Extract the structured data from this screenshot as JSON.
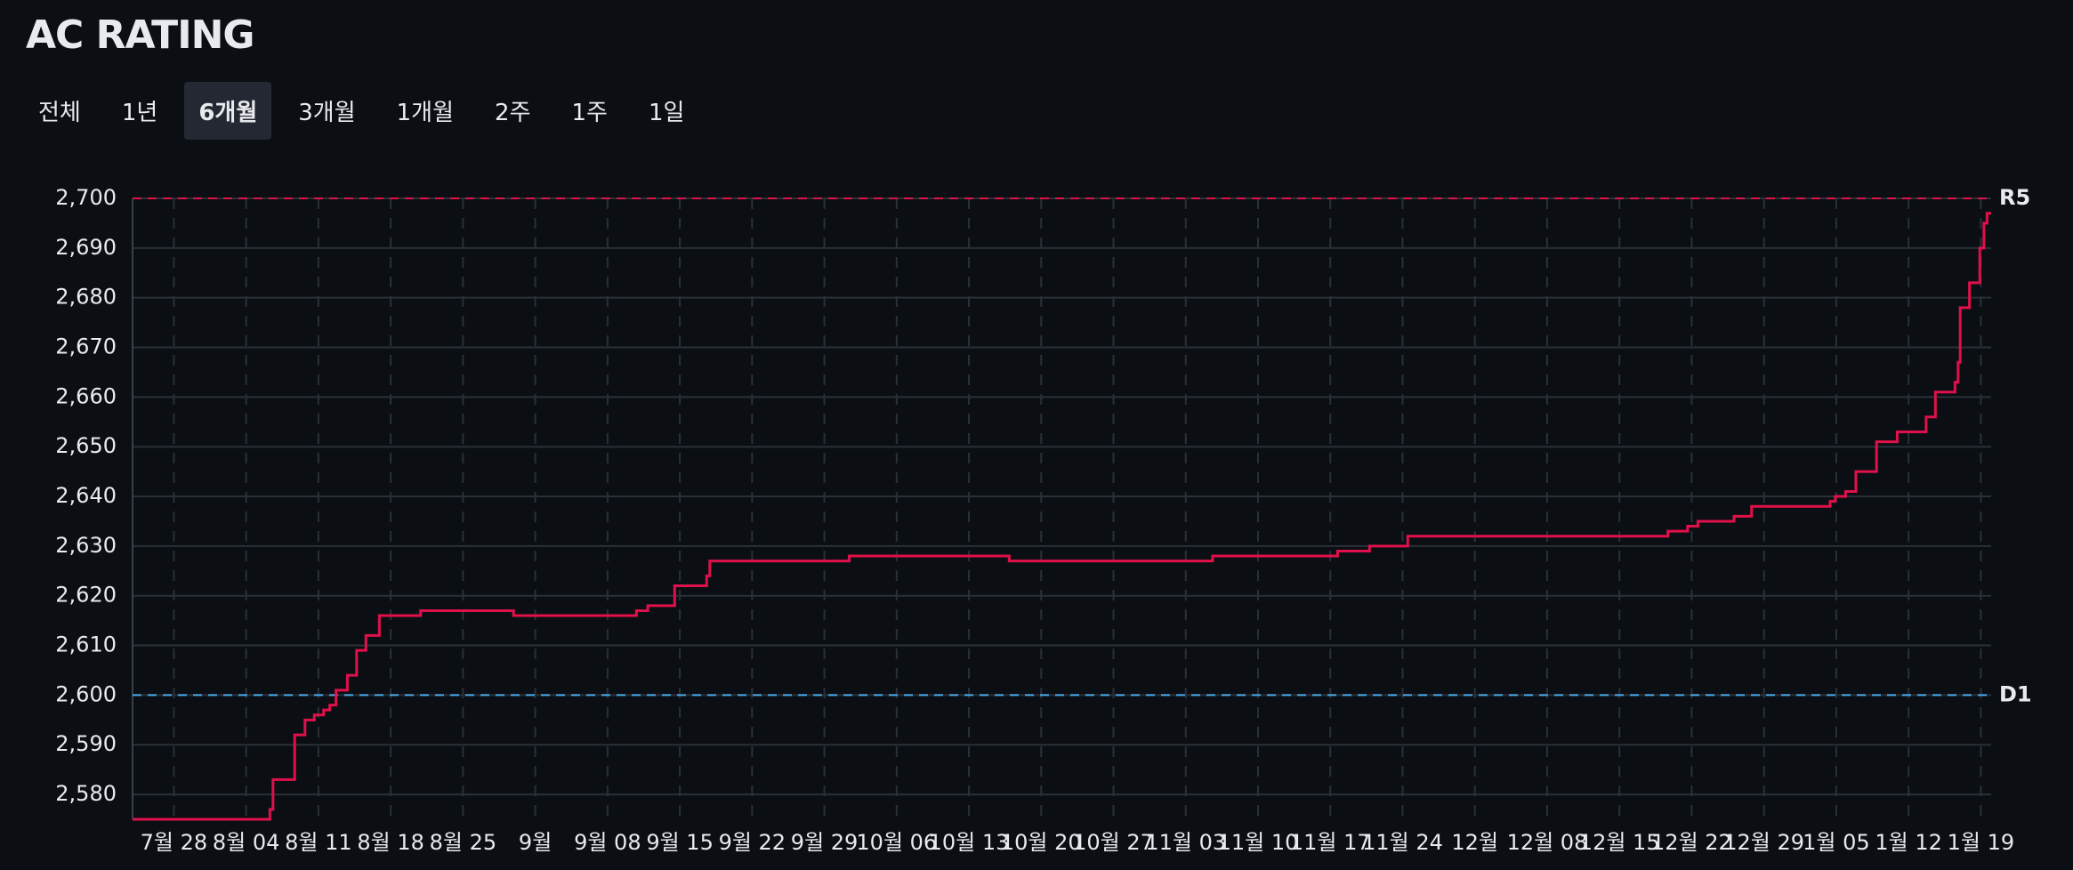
{
  "header": {
    "title": "AC RATING",
    "ranges": [
      "전체",
      "1년",
      "6개월",
      "3개월",
      "1개월",
      "2주",
      "1주",
      "1일"
    ],
    "selected_range": "6개월"
  },
  "chart_data": {
    "type": "step-line",
    "xlim": [
      205,
      385
    ],
    "xticks": [
      {
        "value": 209,
        "label": "7월 28"
      },
      {
        "value": 216,
        "label": "8월 04"
      },
      {
        "value": 223,
        "label": "8월 11"
      },
      {
        "value": 230,
        "label": "8월 18"
      },
      {
        "value": 237,
        "label": "8월 25"
      },
      {
        "value": 244,
        "label": "9월"
      },
      {
        "value": 251,
        "label": "9월 08"
      },
      {
        "value": 258,
        "label": "9월 15"
      },
      {
        "value": 265,
        "label": "9월 22"
      },
      {
        "value": 272,
        "label": "9월 29"
      },
      {
        "value": 279,
        "label": "10월 06"
      },
      {
        "value": 286,
        "label": "10월 13"
      },
      {
        "value": 293,
        "label": "10월 20"
      },
      {
        "value": 300,
        "label": "10월 27"
      },
      {
        "value": 307,
        "label": "11월 03"
      },
      {
        "value": 314,
        "label": "11월 10"
      },
      {
        "value": 321,
        "label": "11월 17"
      },
      {
        "value": 328,
        "label": "11월 24"
      },
      {
        "value": 335,
        "label": "12월"
      },
      {
        "value": 342,
        "label": "12월 08"
      },
      {
        "value": 349,
        "label": "12월 15"
      },
      {
        "value": 356,
        "label": "12월 22"
      },
      {
        "value": 363,
        "label": "12월 29"
      },
      {
        "value": 370,
        "label": "1월 05"
      },
      {
        "value": 377,
        "label": "1월 12"
      },
      {
        "value": 384,
        "label": "1월 19"
      }
    ],
    "ylim": [
      2575,
      2700
    ],
    "yticks": [
      {
        "value": 2580,
        "label": "2,580"
      },
      {
        "value": 2590,
        "label": "2,590"
      },
      {
        "value": 2600,
        "label": "2,600"
      },
      {
        "value": 2610,
        "label": "2,610"
      },
      {
        "value": 2620,
        "label": "2,620"
      },
      {
        "value": 2630,
        "label": "2,630"
      },
      {
        "value": 2640,
        "label": "2,640"
      },
      {
        "value": 2650,
        "label": "2,650"
      },
      {
        "value": 2660,
        "label": "2,660"
      },
      {
        "value": 2670,
        "label": "2,670"
      },
      {
        "value": 2680,
        "label": "2,680"
      },
      {
        "value": 2690,
        "label": "2,690"
      },
      {
        "value": 2700,
        "label": "2,700"
      }
    ],
    "grid": true,
    "series": [
      {
        "name": "AC Rating",
        "color": "#e0104a",
        "x": [
          205,
          218.3,
          218.6,
          220.7,
          221.7,
          222.6,
          223.5,
          224.1,
          224.7,
          225.8,
          226.7,
          227.6,
          228.9,
          232.9,
          241.9,
          253.8,
          254.9,
          257.5,
          260.6,
          260.9,
          274.4,
          289.9,
          309.6,
          321.7,
          324.8,
          328.5,
          353.7,
          355.6,
          356.6,
          360.1,
          361.8,
          369.4,
          369.9,
          370.9,
          371.9,
          373.9,
          375.9,
          378.7,
          379.6,
          381.5,
          381.8,
          382.0,
          382.9,
          383.9,
          384.3,
          384.6
        ],
        "values": [
          2575,
          2577,
          2583,
          2592,
          2595,
          2596,
          2597,
          2598,
          2601,
          2604,
          2609,
          2612,
          2616,
          2617,
          2616,
          2617,
          2618,
          2622,
          2624,
          2627,
          2628,
          2627,
          2628,
          2629,
          2630,
          2632,
          2633,
          2634,
          2635,
          2636,
          2638,
          2639,
          2640,
          2641,
          2645,
          2651,
          2653,
          2656,
          2661,
          2663,
          2667,
          2678,
          2683,
          2690,
          2695,
          2697
        ]
      }
    ],
    "reference_lines": [
      {
        "label": "R5",
        "value": 2700,
        "color": "#e0104a"
      },
      {
        "label": "D1",
        "value": 2600,
        "color": "#4aa8e8"
      }
    ]
  }
}
